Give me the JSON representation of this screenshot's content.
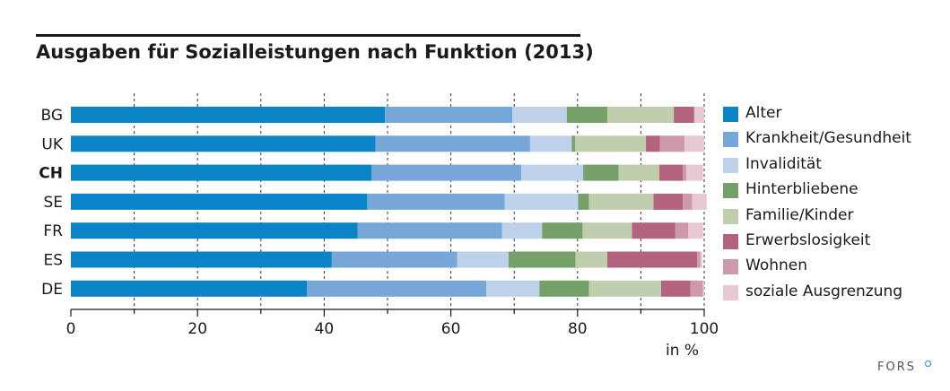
{
  "chart_data": {
    "type": "bar",
    "orientation": "horizontal",
    "stacked": true,
    "title": "Ausgaben für Sozialleistungen nach Funktion (2013)",
    "xlabel": "in %",
    "xlim": [
      0,
      100
    ],
    "xticks": [
      "0",
      "20",
      "40",
      "60",
      "80",
      "100"
    ],
    "categories": [
      "BG",
      "UK",
      "CH",
      "SE",
      "FR",
      "ES",
      "DE"
    ],
    "highlight_category": "CH",
    "series": [
      {
        "name": "Alter",
        "color": "#0a84c6",
        "values": [
          49.6,
          48.1,
          47.5,
          46.8,
          45.3,
          41.2,
          37.3
        ]
      },
      {
        "name": "Krankheit/Gesundheit",
        "color": "#77a7d9",
        "values": [
          20.1,
          24.4,
          23.6,
          21.7,
          22.8,
          19.8,
          28.3
        ]
      },
      {
        "name": "Invalidität",
        "color": "#bed1ea",
        "values": [
          8.6,
          6.6,
          9.8,
          11.6,
          6.3,
          8.1,
          8.4
        ]
      },
      {
        "name": "Hinterbliebene",
        "color": "#76a06a",
        "values": [
          6.4,
          0.5,
          5.6,
          1.7,
          6.4,
          10.6,
          7.8
        ]
      },
      {
        "name": "Familie/Kinder",
        "color": "#bfcfae",
        "values": [
          10.5,
          11.2,
          6.4,
          10.2,
          7.8,
          5.0,
          11.4
        ]
      },
      {
        "name": "Erwerbslosigkeit",
        "color": "#b3637e",
        "values": [
          3.2,
          2.2,
          3.7,
          4.6,
          6.8,
          14.2,
          4.6
        ]
      },
      {
        "name": "Wohnen",
        "color": "#cd99ad",
        "values": [
          0.1,
          3.9,
          0.6,
          1.5,
          2.1,
          0.5,
          2.0
        ]
      },
      {
        "name": "soziale Ausgrenzung",
        "color": "#e7c8d4",
        "values": [
          1.5,
          3.1,
          2.6,
          2.3,
          2.3,
          0.3,
          0.2
        ]
      }
    ]
  },
  "brand": "FORS"
}
